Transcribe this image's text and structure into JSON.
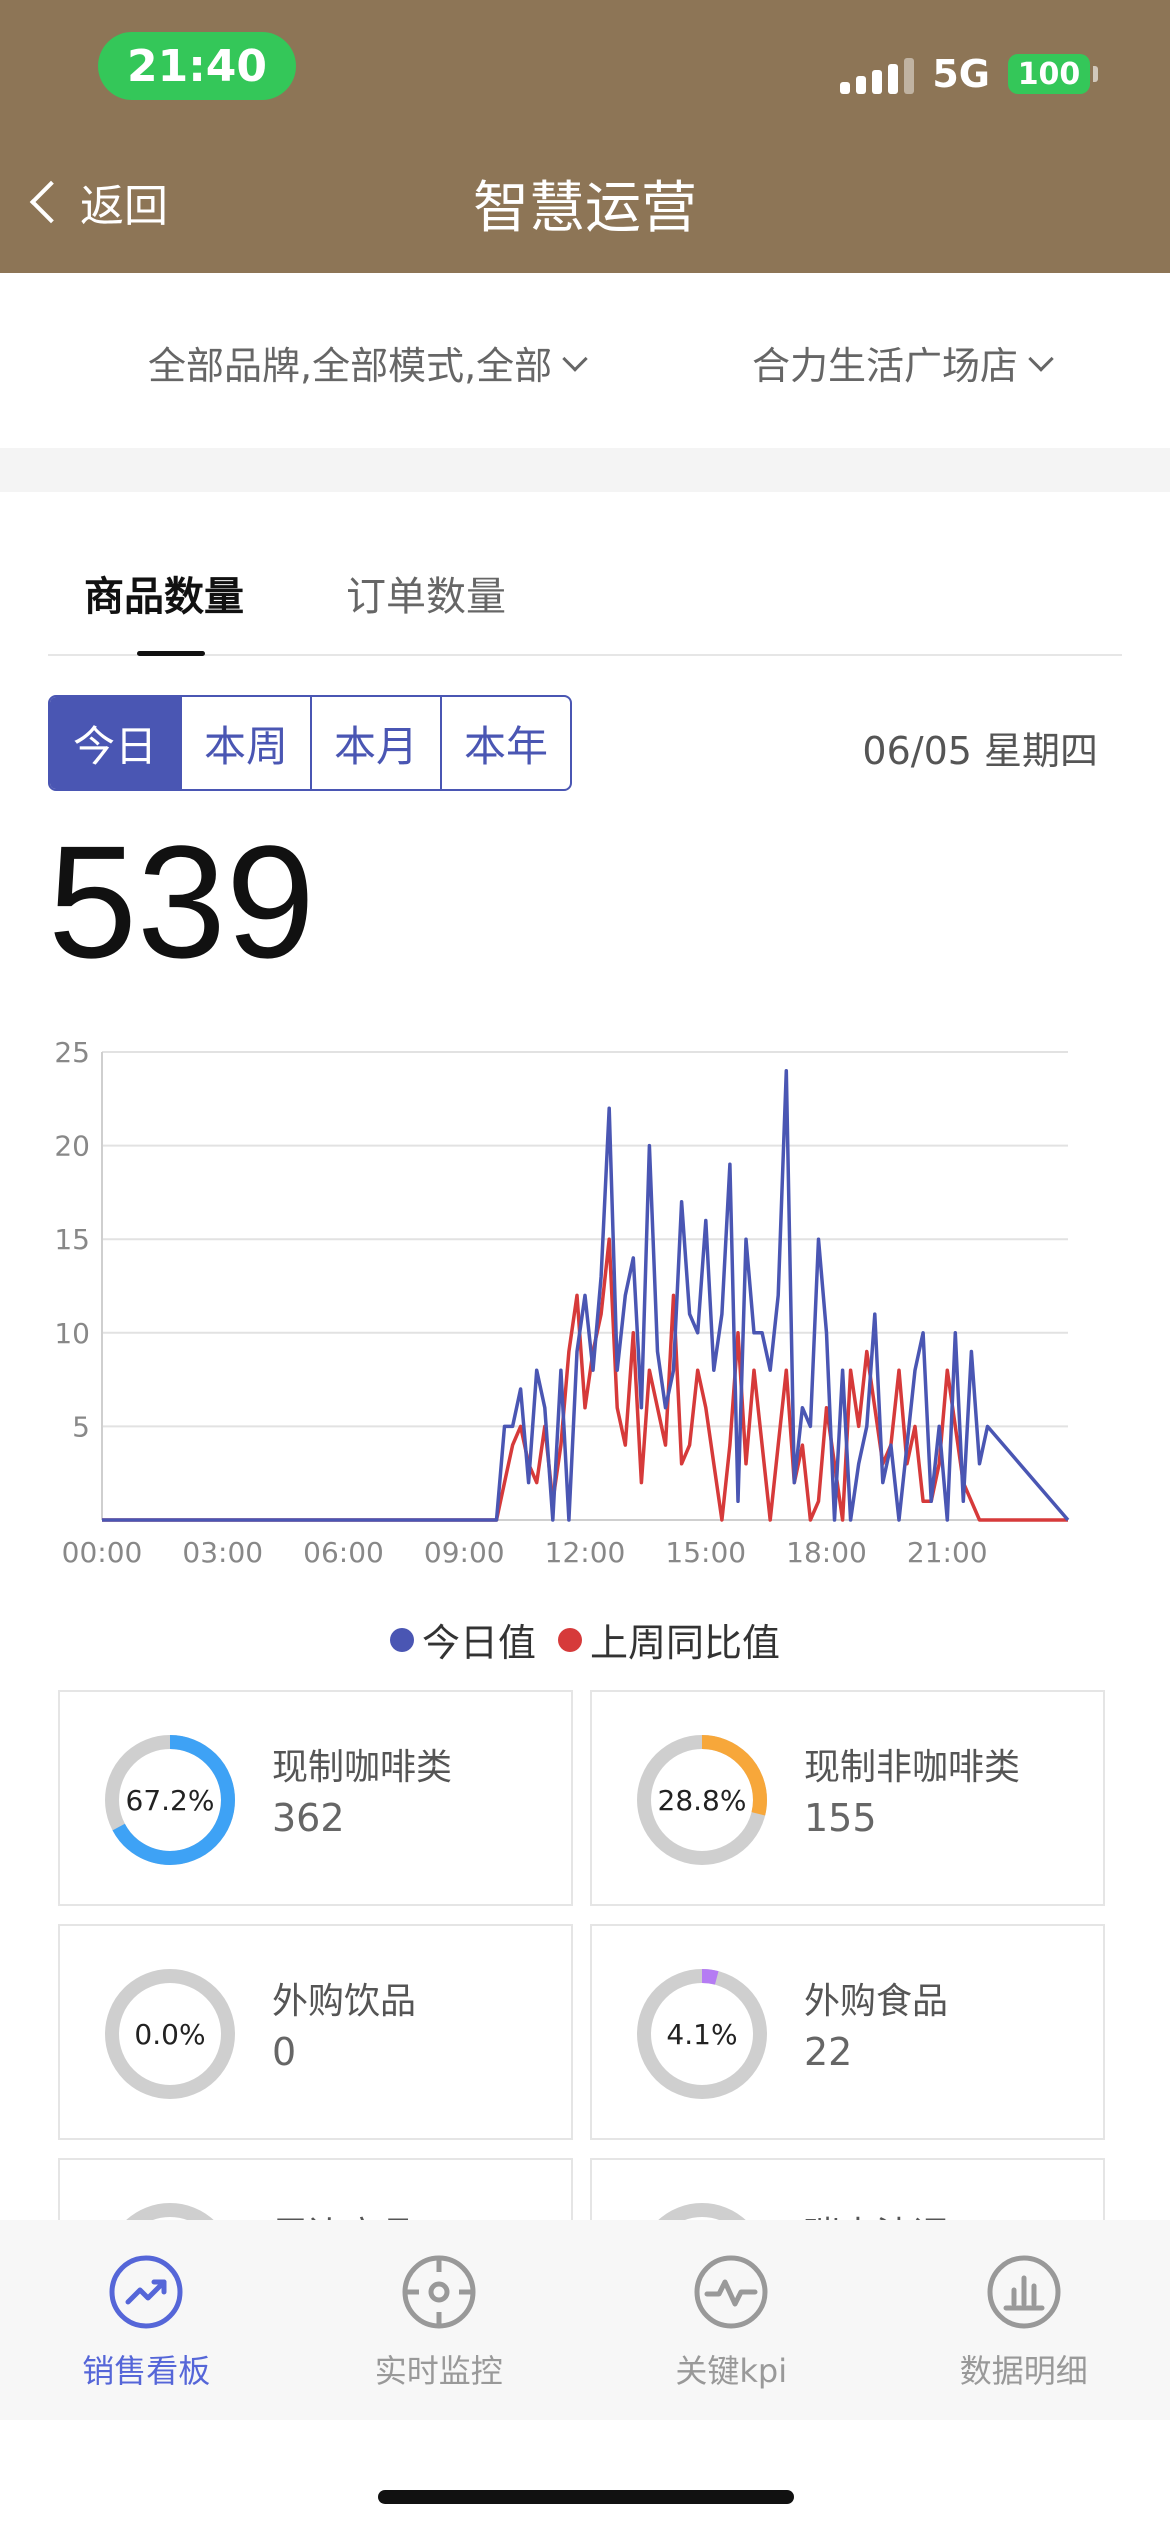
{
  "status_bar": {
    "time": "21:40",
    "network": "5G",
    "battery": "100"
  },
  "nav": {
    "back_label": "返回",
    "title": "智慧运营"
  },
  "filters": {
    "brand_filter": "全部品牌,全部模式,全部",
    "store_filter": "合力生活广场店"
  },
  "tabs": [
    {
      "label": "商品数量",
      "active": true
    },
    {
      "label": "订单数量",
      "active": false
    }
  ],
  "periods": [
    {
      "label": "今日",
      "active": true
    },
    {
      "label": "本周",
      "active": false
    },
    {
      "label": "本月",
      "active": false
    },
    {
      "label": "本年",
      "active": false
    }
  ],
  "date_label": "06/05 星期四",
  "total": "539",
  "chart_data": {
    "type": "line",
    "x_tick_labels": [
      "00:00",
      "03:00",
      "06:00",
      "09:00",
      "12:00",
      "15:00",
      "18:00",
      "21:00"
    ],
    "ylim": [
      0,
      25
    ],
    "y_ticks": [
      5,
      10,
      15,
      20,
      25
    ],
    "x_unit": "hour",
    "xlim": [
      0,
      24
    ],
    "grid": true,
    "legend_position": "bottom",
    "series": [
      {
        "name": "今日值",
        "color": "#4a56b3",
        "x": [
          0,
          9.8,
          10.0,
          10.2,
          10.4,
          10.6,
          10.8,
          11.0,
          11.2,
          11.4,
          11.6,
          11.8,
          12.0,
          12.2,
          12.4,
          12.6,
          12.8,
          13.0,
          13.2,
          13.4,
          13.6,
          13.8,
          14.0,
          14.2,
          14.4,
          14.6,
          14.8,
          15.0,
          15.2,
          15.4,
          15.6,
          15.8,
          16.0,
          16.2,
          16.4,
          16.6,
          16.8,
          17.0,
          17.2,
          17.4,
          17.6,
          17.8,
          18.0,
          18.2,
          18.4,
          18.6,
          18.8,
          19.0,
          19.2,
          19.4,
          19.6,
          19.8,
          20.0,
          20.2,
          20.4,
          20.6,
          20.8,
          21.0,
          21.2,
          21.4,
          21.6,
          21.8,
          22.0,
          24.0
        ],
        "y": [
          0,
          0,
          5,
          5,
          7,
          2,
          8,
          6,
          0,
          8,
          0,
          9,
          12,
          8,
          13,
          22,
          8,
          12,
          14,
          6,
          20,
          9,
          6,
          8,
          17,
          11,
          10,
          16,
          8,
          11,
          19,
          1,
          15,
          10,
          10,
          8,
          12,
          24,
          2,
          6,
          5,
          15,
          10,
          0,
          8,
          0,
          3,
          5,
          11,
          2,
          4,
          0,
          4,
          8,
          10,
          1,
          5,
          0,
          10,
          1,
          9,
          3,
          5,
          0
        ],
        "note": ""
      },
      {
        "name": "上周同比值",
        "color": "#d63a3a",
        "x": [
          0,
          9.8,
          10.0,
          10.2,
          10.4,
          10.6,
          10.8,
          11.0,
          11.2,
          11.4,
          11.6,
          11.8,
          12.0,
          12.2,
          12.4,
          12.6,
          12.8,
          13.0,
          13.2,
          13.4,
          13.6,
          13.8,
          14.0,
          14.2,
          14.4,
          14.6,
          14.8,
          15.0,
          15.2,
          15.4,
          15.6,
          15.8,
          16.0,
          16.2,
          16.4,
          16.6,
          16.8,
          17.0,
          17.2,
          17.4,
          17.6,
          17.8,
          18.0,
          18.2,
          18.4,
          18.6,
          18.8,
          19.0,
          19.2,
          19.4,
          19.6,
          19.8,
          20.0,
          20.2,
          20.4,
          20.6,
          20.8,
          21.0,
          21.2,
          21.4,
          21.6,
          21.8,
          22.0,
          24.0
        ],
        "y": [
          0,
          0,
          2,
          4,
          5,
          3,
          2,
          5,
          1,
          4,
          9,
          12,
          6,
          9,
          11,
          15,
          6,
          4,
          10,
          2,
          8,
          6,
          4,
          12,
          3,
          4,
          8,
          6,
          3,
          0,
          4,
          10,
          3,
          8,
          4,
          0,
          4,
          8,
          2,
          4,
          0,
          1,
          6,
          3,
          0,
          8,
          5,
          9,
          6,
          3,
          4,
          8,
          3,
          5,
          1,
          1,
          3,
          8,
          5,
          2,
          1,
          0,
          0,
          0
        ],
        "note": ""
      }
    ]
  },
  "legend": {
    "today": "今日值",
    "last_week": "上周同比值"
  },
  "categories": [
    {
      "pct_label": "67.2%",
      "pct": 0.672,
      "name": "现制咖啡类",
      "value": "362",
      "color": "#3ea2f5"
    },
    {
      "pct_label": "28.8%",
      "pct": 0.288,
      "name": "现制非咖啡类",
      "value": "155",
      "color": "#f7a73a"
    },
    {
      "pct_label": "0.0%",
      "pct": 0.0,
      "name": "外购饮品",
      "value": "0",
      "color": "#9b6cf0"
    },
    {
      "pct_label": "4.1%",
      "pct": 0.041,
      "name": "外购食品",
      "value": "22",
      "color": "#b57cf3"
    },
    {
      "pct_label": "",
      "pct": 0.0,
      "name": "周边商品",
      "value": "",
      "color": "#cccccc"
    },
    {
      "pct_label": "",
      "pct": 0.0,
      "name": "瑞幸法调",
      "value": "",
      "color": "#cccccc"
    }
  ],
  "bottom_nav": [
    {
      "label": "销售看板",
      "icon": "trend-icon",
      "active": true
    },
    {
      "label": "实时监控",
      "icon": "crosshair-icon",
      "active": false
    },
    {
      "label": "关键kpi",
      "icon": "pulse-icon",
      "active": false
    },
    {
      "label": "数据明细",
      "icon": "bar-chart-icon",
      "active": false
    }
  ]
}
